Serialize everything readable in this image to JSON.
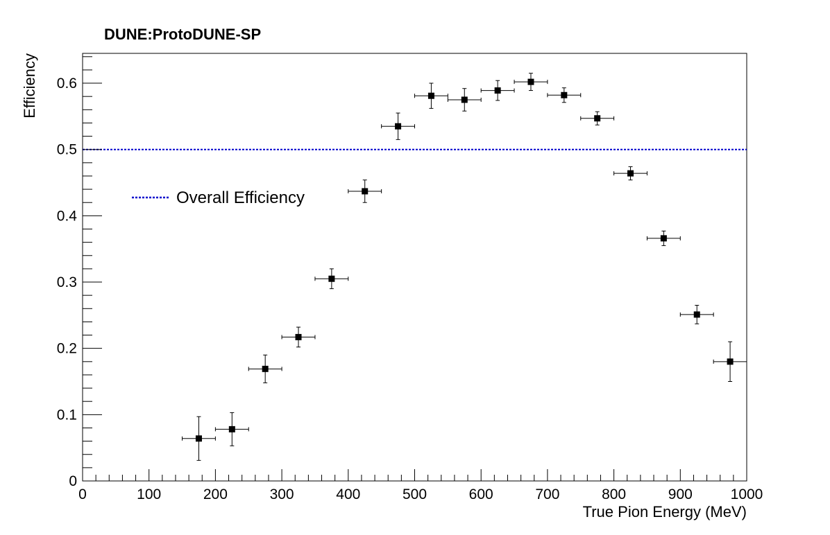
{
  "chart_data": {
    "type": "scatter",
    "title": "DUNE:ProtoDUNE-SP",
    "xlabel": "True Pion Energy (MeV)",
    "ylabel": "Efficiency",
    "xlim": [
      0,
      1000
    ],
    "ylim": [
      0,
      0.645
    ],
    "x_ticks": [
      0,
      100,
      200,
      300,
      400,
      500,
      600,
      700,
      800,
      900,
      1000
    ],
    "y_ticks": [
      0,
      0.1,
      0.2,
      0.3,
      0.4,
      0.5,
      0.6
    ],
    "y_tick_labels": [
      "0",
      "0.1",
      "0.2",
      "0.3",
      "0.4",
      "0.5",
      "0.6"
    ],
    "grid": false,
    "legend_position": "upper-left",
    "series": [
      {
        "name": "",
        "marker": "square",
        "color": "#000000",
        "x_bin_halfwidth": 25,
        "points": [
          {
            "x": 175,
            "y": 0.064,
            "yerr": 0.033
          },
          {
            "x": 225,
            "y": 0.078,
            "yerr": 0.025
          },
          {
            "x": 275,
            "y": 0.169,
            "yerr": 0.021
          },
          {
            "x": 325,
            "y": 0.217,
            "yerr": 0.015
          },
          {
            "x": 375,
            "y": 0.305,
            "yerr": 0.015
          },
          {
            "x": 425,
            "y": 0.437,
            "yerr": 0.017
          },
          {
            "x": 475,
            "y": 0.535,
            "yerr": 0.02
          },
          {
            "x": 525,
            "y": 0.581,
            "yerr": 0.019
          },
          {
            "x": 575,
            "y": 0.575,
            "yerr": 0.017
          },
          {
            "x": 625,
            "y": 0.589,
            "yerr": 0.015
          },
          {
            "x": 675,
            "y": 0.602,
            "yerr": 0.013
          },
          {
            "x": 725,
            "y": 0.582,
            "yerr": 0.011
          },
          {
            "x": 775,
            "y": 0.547,
            "yerr": 0.01
          },
          {
            "x": 825,
            "y": 0.464,
            "yerr": 0.01
          },
          {
            "x": 875,
            "y": 0.366,
            "yerr": 0.011
          },
          {
            "x": 925,
            "y": 0.251,
            "yerr": 0.014
          },
          {
            "x": 975,
            "y": 0.18,
            "yerr": 0.03
          }
        ]
      }
    ],
    "reference_line": {
      "name": "Overall Efficiency",
      "y": 0.5,
      "color": "#0000cc",
      "style": "dotted"
    }
  }
}
